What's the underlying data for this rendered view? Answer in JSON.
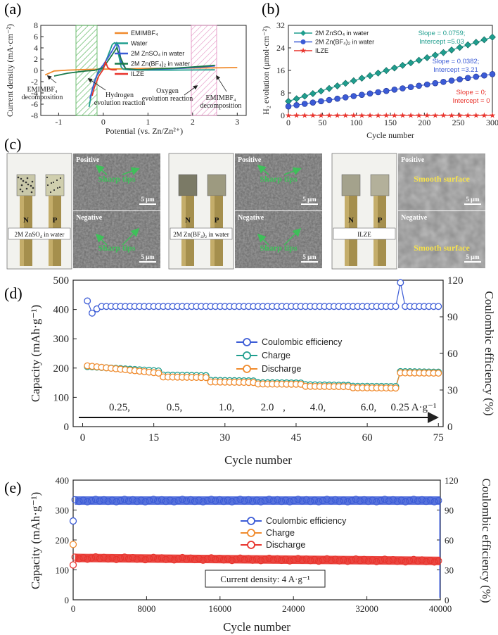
{
  "panel_letters": {
    "a": "(a)",
    "b": "(b)",
    "c": "(c)",
    "d": "(d)",
    "e": "(e)"
  },
  "colors": {
    "orange": "#f08a2c",
    "teal": "#1f9e8e",
    "blue": "#3b5bd6",
    "red": "#e8332c",
    "green": "#2aa15a",
    "pink": "#d9479b",
    "darkgreen": "#1b7a4b"
  },
  "chart_data": [
    {
      "id": "a",
      "type": "line",
      "xlabel": "Potential (vs. Zn/Zn²⁺)",
      "ylabel": "Current density (mA·cm⁻²)",
      "xlim": [
        -1.4,
        3.2
      ],
      "ylim": [
        -8,
        8
      ],
      "xticks": [
        "-1",
        "0",
        "1",
        "2",
        "3"
      ],
      "yticks": [
        "8",
        "6",
        "4",
        "2",
        "0",
        "-2",
        "-4",
        "-6",
        "-8"
      ],
      "legend": [
        "EMIMBF₄",
        "Water",
        "2M ZnSO₄ in water",
        "2M Zn(BF₄)₂ in water",
        "ILZE"
      ],
      "series": [
        {
          "name": "EMIMBF4",
          "x": [
            -1.3,
            -1.1,
            -0.8,
            -0.4,
            0,
            0.5,
            1,
            1.5,
            2,
            2.5,
            3
          ],
          "y": [
            -0.8,
            -0.1,
            0.05,
            0.15,
            0.22,
            0.28,
            0.35,
            0.38,
            0.42,
            0.45,
            0.5
          ]
        },
        {
          "name": "Water",
          "x": [
            -0.32,
            -0.25,
            -0.15,
            0,
            0.1,
            0.2,
            0.25,
            0.3,
            0.35,
            0.4,
            0.45,
            0.6,
            1.0,
            1.5,
            2.0,
            2.5
          ],
          "y": [
            -6.5,
            -3.5,
            -1,
            0.6,
            2.5,
            4.6,
            4.9,
            4.5,
            2.5,
            0.6,
            0.2,
            0.1,
            0.05,
            0.05,
            0.08,
            0.1
          ]
        },
        {
          "name": "2M ZnSO4 in water",
          "x": [
            -0.3,
            -0.2,
            -0.1,
            0,
            0.1,
            0.2,
            0.3,
            0.35,
            0.4,
            0.5,
            0.7,
            1.2,
            1.8,
            2.2,
            2.5
          ],
          "y": [
            -5,
            -2,
            0,
            1,
            2.2,
            3.5,
            4.9,
            4.2,
            1.5,
            0.3,
            0.1,
            0.2,
            0.4,
            0.6,
            0.8
          ]
        },
        {
          "name": "2M Zn(BF4)2 in water",
          "x": [
            -1.1,
            -0.8,
            -0.4,
            -0.2,
            0,
            0.2,
            0.3,
            0.4,
            0.5,
            0.8,
            1.2,
            1.6,
            2,
            2.5
          ],
          "y": [
            -1,
            -0.5,
            -0.1,
            0,
            0.5,
            2.8,
            4.0,
            2,
            0.3,
            0.1,
            0.3,
            0.4,
            0.6,
            0.9
          ]
        },
        {
          "name": "ILZE",
          "x": [
            -0.25,
            -0.2,
            -0.1,
            0,
            0.05,
            0.1,
            0.15,
            0.2,
            0.3
          ],
          "y": [
            -4.5,
            -3,
            -1,
            0.2,
            1.5,
            0.5,
            0.2,
            0.1,
            0.1
          ]
        }
      ],
      "annotations": [
        "EMIMBF₄\ndecomposition",
        "Hydrogen\nevolution reaction",
        "Oxygen\nevolution reaction",
        "EMIMBF₄\ndecomposition"
      ]
    },
    {
      "id": "b",
      "type": "line",
      "xlabel": "Cycle number",
      "ylabel": "H₂ evolution (μmol·cm⁻²)",
      "xlim": [
        0,
        300
      ],
      "ylim": [
        0,
        32
      ],
      "xticks": [
        "0",
        "50",
        "100",
        "150",
        "200",
        "250",
        "300"
      ],
      "yticks": [
        "32",
        "24",
        "16",
        "8",
        "0"
      ],
      "legend": [
        "2M ZnSO₄ in water",
        "2M Zn(BF₄)₂ in water",
        "ILZE"
      ],
      "series": [
        {
          "name": "2M ZnSO4 in water",
          "slope": 0.0759,
          "intercept": 5.03
        },
        {
          "name": "2M Zn(BF4)2 in water",
          "slope": 0.0382,
          "intercept": 3.21
        },
        {
          "name": "ILZE",
          "slope": 0,
          "intercept": 0
        }
      ],
      "fit_labels": [
        [
          "Slope = 0.0759;",
          "Intercept =5.03"
        ],
        [
          "Slope = 0.0382;",
          "Intercept =3.21"
        ],
        [
          "Slope = 0;",
          "Intercept = 0"
        ]
      ]
    },
    {
      "id": "d",
      "type": "scatter",
      "xlabel": "Cycle number",
      "ylabel": "Capacity (mAh·g⁻¹)",
      "y2label": "Coulombic efficiency (%)",
      "xlim": [
        -2,
        76
      ],
      "ylim": [
        0,
        500
      ],
      "y2lim": [
        0,
        120
      ],
      "xticks": [
        "0",
        "15",
        "30",
        "45",
        "60",
        "75"
      ],
      "yticks": [
        "500",
        "400",
        "300",
        "200",
        "100",
        "0"
      ],
      "y2ticks": [
        "120",
        "90",
        "60",
        "30",
        "0"
      ],
      "legend": [
        "Coulombic efficiency",
        "Charge",
        "Discharge"
      ],
      "rates": [
        "0.25,",
        "0.5,",
        "1.0,",
        "2.0",
        ",",
        "4.0,",
        "6.0,",
        "0.25 A·g⁻¹"
      ],
      "segments": [
        {
          "from": 1,
          "to": 16,
          "charge_start": 205,
          "charge_end": 190,
          "discharge_start": 210,
          "discharge_end": 185
        },
        {
          "from": 17,
          "to": 26,
          "charge_start": 176,
          "charge_end": 174,
          "discharge_start": 172,
          "discharge_end": 170
        },
        {
          "from": 27,
          "to": 36,
          "charge_start": 158,
          "charge_end": 156,
          "discharge_start": 155,
          "discharge_end": 153
        },
        {
          "from": 37,
          "to": 46,
          "charge_start": 150,
          "charge_end": 149,
          "discharge_start": 148,
          "discharge_end": 147
        },
        {
          "from": 47,
          "to": 56,
          "charge_start": 143,
          "charge_end": 141,
          "discharge_start": 140,
          "discharge_end": 139
        },
        {
          "from": 57,
          "to": 66,
          "charge_start": 138,
          "charge_end": 137,
          "discharge_start": 135,
          "discharge_end": 134
        },
        {
          "from": 67,
          "to": 75,
          "charge_start": 188,
          "charge_end": 186,
          "discharge_start": 186,
          "discharge_end": 185
        }
      ],
      "ce": {
        "first": 103,
        "second": 93,
        "typical": 98.5,
        "spike_cycle": 67,
        "spike": 118
      }
    },
    {
      "id": "e",
      "type": "scatter",
      "xlabel": "Cycle number",
      "ylabel": "Capacity (mAh·g⁻¹)",
      "y2label": "Coulombic efficiency (%)",
      "xlim": [
        0,
        40000
      ],
      "ylim": [
        0,
        400
      ],
      "y2lim": [
        0,
        120
      ],
      "xticks": [
        "0",
        "8000",
        "16000",
        "24000",
        "32000",
        "40000"
      ],
      "yticks": [
        "400",
        "300",
        "200",
        "100",
        "0"
      ],
      "y2ticks": [
        "120",
        "90",
        "60",
        "30",
        "0"
      ],
      "legend": [
        "Coulombic efficiency",
        "Charge",
        "Discharge"
      ],
      "note": "Current density: 4 A·g⁻¹",
      "capacity_start": 140,
      "capacity_end": 130,
      "ce_value": 99.5,
      "first_capacity": 185,
      "first_ce": 79
    }
  ],
  "panel_c": {
    "groups": [
      {
        "label": "2M ZnSO₄ in water",
        "positive": "Positive",
        "negative": "Negative",
        "pos_note": "Sharp tips",
        "neg_note": "Sharp tips",
        "scale": "5 μm"
      },
      {
        "label": "2M Zn(BF₄)₂ in water",
        "positive": "Positive",
        "negative": "Negative",
        "pos_note": "Sharp tips",
        "neg_note": "Sharp tips",
        "scale": "5 μm"
      },
      {
        "label": "ILZE",
        "positive": "Positive",
        "negative": "Negative",
        "pos_note": "Smooth surface",
        "neg_note": "Smooth surface",
        "scale": "5 μm"
      }
    ],
    "electrodes": [
      "N",
      "P"
    ]
  }
}
